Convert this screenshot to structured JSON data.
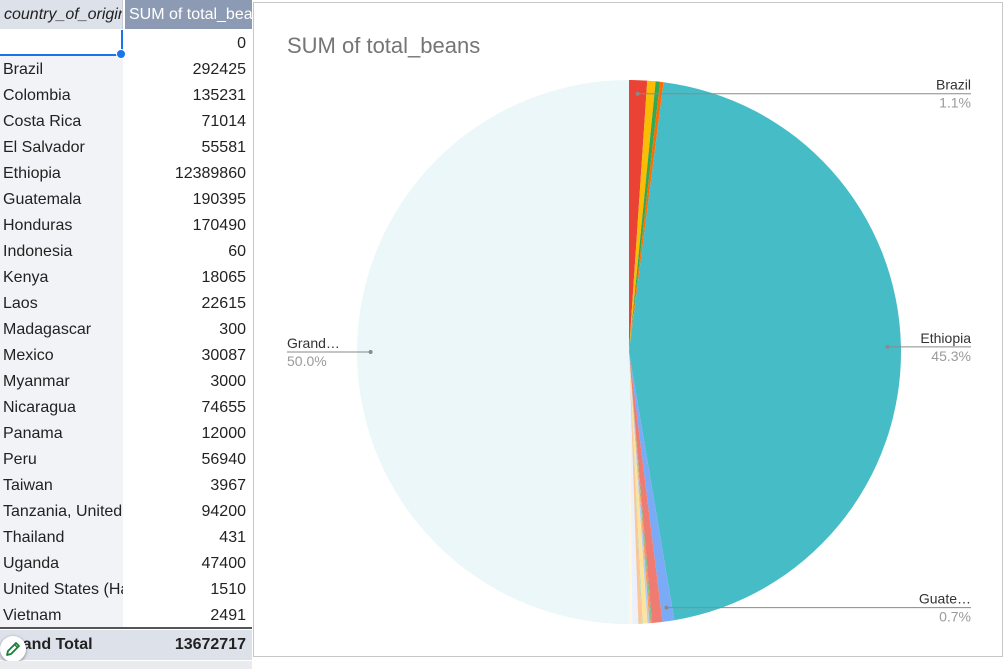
{
  "table": {
    "header_country": "country_of_origin",
    "header_sum": "SUM of total_beans",
    "blank_value": "0",
    "rows": [
      {
        "label": "Brazil",
        "value": "292425"
      },
      {
        "label": "Colombia",
        "value": "135231"
      },
      {
        "label": "Costa Rica",
        "value": "71014"
      },
      {
        "label": "El Salvador",
        "value": "55581"
      },
      {
        "label": "Ethiopia",
        "value": "12389860"
      },
      {
        "label": "Guatemala",
        "value": "190395"
      },
      {
        "label": "Honduras",
        "value": "170490"
      },
      {
        "label": "Indonesia",
        "value": "60"
      },
      {
        "label": "Kenya",
        "value": "18065"
      },
      {
        "label": "Laos",
        "value": "22615"
      },
      {
        "label": "Madagascar",
        "value": "300"
      },
      {
        "label": "Mexico",
        "value": "30087"
      },
      {
        "label": "Myanmar",
        "value": "3000"
      },
      {
        "label": "Nicaragua",
        "value": "74655"
      },
      {
        "label": "Panama",
        "value": "12000"
      },
      {
        "label": "Peru",
        "value": "56940"
      },
      {
        "label": "Taiwan",
        "value": "3967"
      },
      {
        "label": "Tanzania, United Republic Of",
        "value": "94200"
      },
      {
        "label": "Thailand",
        "value": "431"
      },
      {
        "label": "Uganda",
        "value": "47400"
      },
      {
        "label": "United States (Hawaii)",
        "value": "1510"
      },
      {
        "label": "Vietnam",
        "value": "2491"
      }
    ],
    "grand_label": "Grand Total",
    "grand_value": "13672717"
  },
  "icons": {
    "edit": "pencil-icon"
  },
  "chart_data": {
    "type": "pie",
    "title": "SUM of total_beans",
    "slices": [
      {
        "label": "Brazil",
        "value": 292425,
        "color": "#ea4335"
      },
      {
        "label": "Colombia",
        "value": 135231,
        "color": "#fbbc04"
      },
      {
        "label": "Costa Rica",
        "value": 71014,
        "color": "#34a853"
      },
      {
        "label": "El Salvador",
        "value": 55581,
        "color": "#ff6d01"
      },
      {
        "label": "Ethiopia",
        "value": 12389860,
        "color": "#46bdc6"
      },
      {
        "label": "Guatemala",
        "value": 190395,
        "color": "#7baaf7"
      },
      {
        "label": "Honduras",
        "value": 170490,
        "color": "#f07b72"
      },
      {
        "label": "Indonesia",
        "value": 60,
        "color": "#fcd04f"
      },
      {
        "label": "Kenya",
        "value": 18065,
        "color": "#71c287"
      },
      {
        "label": "Laos",
        "value": 22615,
        "color": "#ff994d"
      },
      {
        "label": "Madagascar",
        "value": 300,
        "color": "#7ed1d7"
      },
      {
        "label": "Mexico",
        "value": 30087,
        "color": "#b3cefb"
      },
      {
        "label": "Myanmar",
        "value": 3000,
        "color": "#f7b4ae"
      },
      {
        "label": "Nicaragua",
        "value": 74655,
        "color": "#fde49b"
      },
      {
        "label": "Panama",
        "value": 12000,
        "color": "#aedcba"
      },
      {
        "label": "Peru",
        "value": 56940,
        "color": "#ffc599"
      },
      {
        "label": "Taiwan",
        "value": 3967,
        "color": "#b5e5e8"
      },
      {
        "label": "Tanzania, United Republic Of",
        "value": 94200,
        "color": "#ecf1fe"
      },
      {
        "label": "Thailand",
        "value": 431,
        "color": "#fdeceb"
      },
      {
        "label": "Uganda",
        "value": 47400,
        "color": "#fff7e1"
      },
      {
        "label": "United States (Hawaii)",
        "value": 1510,
        "color": "#e8f5eb"
      },
      {
        "label": "Vietnam",
        "value": 2491,
        "color": "#fff0e5"
      },
      {
        "label": "Grand Total",
        "value": 13672717,
        "color": "#ebf7f8"
      }
    ],
    "callouts": [
      {
        "slice": "Brazil",
        "name": "Brazil",
        "pct": "1.1%",
        "side": "right"
      },
      {
        "slice": "Ethiopia",
        "name": "Ethiopia",
        "pct": "45.3%",
        "side": "right"
      },
      {
        "slice": "Guatemala",
        "name": "Guate…",
        "pct": "0.7%",
        "side": "right"
      },
      {
        "slice": "Grand Total",
        "name": "Grand…",
        "pct": "50.0%",
        "side": "left"
      }
    ]
  }
}
